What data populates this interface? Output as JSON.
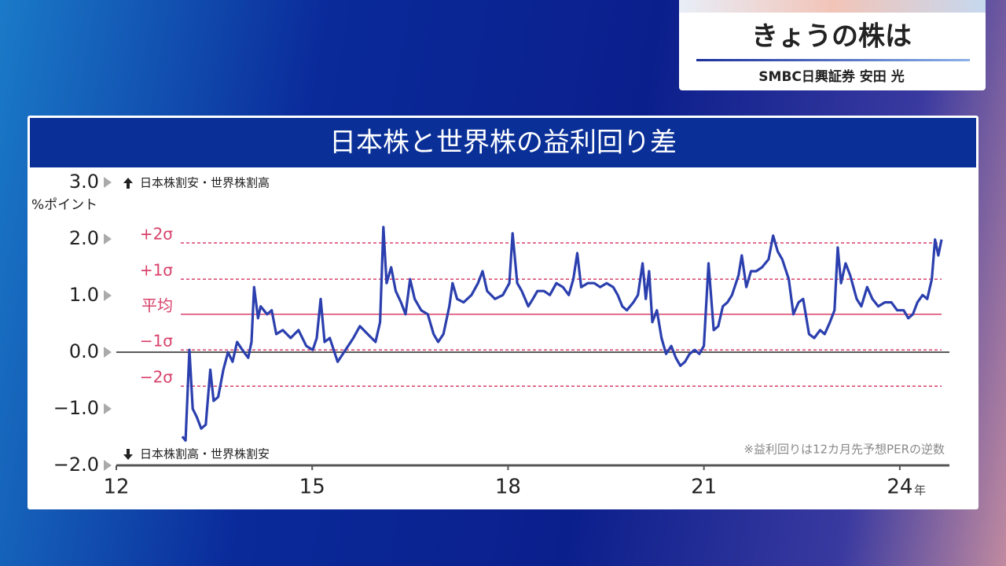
{
  "header": {
    "title": "きょうの株は",
    "subtitle": "SMBC日興証券 安田 光"
  },
  "chart_data": {
    "type": "line",
    "title": "日本株と世界株の益利回り差",
    "y_unit": "%ポイント",
    "x_unit": "年",
    "annotations": {
      "top": "日本株割安・世界株割高",
      "bottom": "日本株割高・世界株割安",
      "note": "※益利回りは12カ月先予想PERの逆数"
    },
    "color": "#2b3fae",
    "x": [
      13.01,
      13.06,
      13.12,
      13.17,
      13.23,
      13.3,
      13.37,
      13.44,
      13.49,
      13.56,
      13.64,
      13.71,
      13.78,
      13.85,
      13.93,
      14.02,
      14.07,
      14.11,
      14.17,
      14.21,
      14.31,
      14.38,
      14.45,
      14.55,
      14.67,
      14.79,
      14.91,
      15.01,
      15.07,
      15.13,
      15.19,
      15.27,
      15.39,
      15.51,
      15.63,
      15.73,
      15.85,
      15.97,
      16.04,
      16.09,
      16.14,
      16.21,
      16.28,
      16.36,
      16.43,
      16.5,
      16.57,
      16.67,
      16.77,
      16.86,
      16.93,
      17.01,
      17.1,
      17.15,
      17.22,
      17.32,
      17.44,
      17.54,
      17.61,
      17.68,
      17.8,
      17.92,
      18.02,
      18.07,
      18.14,
      18.21,
      18.31,
      18.38,
      18.45,
      18.55,
      18.64,
      18.74,
      18.84,
      18.93,
      19.0,
      19.06,
      19.12,
      19.22,
      19.32,
      19.41,
      19.51,
      19.61,
      19.68,
      19.75,
      19.82,
      19.92,
      19.99,
      20.06,
      20.11,
      20.16,
      20.21,
      20.28,
      20.35,
      20.42,
      20.5,
      20.57,
      20.64,
      20.71,
      20.78,
      20.86,
      20.93,
      21.0,
      21.07,
      21.15,
      21.22,
      21.29,
      21.36,
      21.43,
      21.53,
      21.58,
      21.65,
      21.72,
      21.8,
      21.89,
      21.99,
      22.06,
      22.13,
      22.2,
      22.3,
      22.37,
      22.45,
      22.52,
      22.61,
      22.69,
      22.78,
      22.85,
      22.93,
      23.0,
      23.05,
      23.1,
      23.17,
      23.24,
      23.34,
      23.41,
      23.5,
      23.58,
      23.67,
      23.77,
      23.87,
      23.96,
      24.06,
      24.13,
      24.2,
      24.27,
      24.35,
      24.42,
      24.49,
      24.54,
      24.59,
      24.64
    ],
    "values": [
      -1.49,
      -1.56,
      0.04,
      -1.0,
      -1.14,
      -1.35,
      -1.28,
      -0.31,
      -0.86,
      -0.79,
      -0.31,
      0,
      -0.17,
      0.18,
      0.04,
      -0.1,
      0.18,
      1.15,
      0.6,
      0.81,
      0.67,
      0.74,
      0.32,
      0.39,
      0.25,
      0.39,
      0.11,
      0.04,
      0.25,
      0.94,
      0.18,
      0.25,
      -0.17,
      0.04,
      0.25,
      0.46,
      0.32,
      0.18,
      0.53,
      2.21,
      1.22,
      1.5,
      1.08,
      0.88,
      0.67,
      1.29,
      0.94,
      0.74,
      0.67,
      0.32,
      0.18,
      0.32,
      0.81,
      1.22,
      0.94,
      0.88,
      1.01,
      1.22,
      1.43,
      1.08,
      0.94,
      1.01,
      1.22,
      2.1,
      1.22,
      1.08,
      0.81,
      0.94,
      1.08,
      1.08,
      1.01,
      1.22,
      1.15,
      1.01,
      1.29,
      1.75,
      1.15,
      1.22,
      1.22,
      1.15,
      1.22,
      1.15,
      1.01,
      0.81,
      0.74,
      0.88,
      1.01,
      1.57,
      0.94,
      1.43,
      0.53,
      0.74,
      0.25,
      -0.03,
      0.11,
      -0.1,
      -0.24,
      -0.17,
      -0.03,
      0.04,
      -0.03,
      0.11,
      1.57,
      0.39,
      0.46,
      0.81,
      0.88,
      1.01,
      1.36,
      1.71,
      1.15,
      1.43,
      1.43,
      1.5,
      1.64,
      2.06,
      1.78,
      1.64,
      1.29,
      0.67,
      0.88,
      0.94,
      0.32,
      0.25,
      0.39,
      0.32,
      0.53,
      0.74,
      1.85,
      1.22,
      1.57,
      1.36,
      0.94,
      0.81,
      1.15,
      0.94,
      0.81,
      0.88,
      0.88,
      0.74,
      0.74,
      0.6,
      0.67,
      0.88,
      1.01,
      0.94,
      1.29,
      1.99,
      1.71,
      1.99
    ],
    "xlim": [
      12,
      24.76
    ],
    "ylim": [
      -2,
      3
    ],
    "xticks": [
      12,
      15,
      18,
      21,
      24
    ],
    "yticks": [
      {
        "value": 3,
        "label": "3.0"
      },
      {
        "value": 2,
        "label": "2.0"
      },
      {
        "value": 1,
        "label": "1.0"
      },
      {
        "value": 0,
        "label": "0.0"
      },
      {
        "value": -1,
        "label": "−1.0"
      },
      {
        "value": -2,
        "label": "−2.0"
      }
    ],
    "zero_line": true,
    "reference_color": "#d8416a",
    "reference_lines": [
      {
        "label": "+2σ",
        "value": 1.93,
        "style": "dashed"
      },
      {
        "label": "+1σ",
        "value": 1.29,
        "style": "dashed"
      },
      {
        "label": "平均",
        "value": 0.67,
        "style": "solid"
      },
      {
        "label": "−1σ",
        "value": 0.04,
        "style": "dashed"
      },
      {
        "label": "−2σ",
        "value": -0.6,
        "style": "dashed"
      }
    ]
  }
}
